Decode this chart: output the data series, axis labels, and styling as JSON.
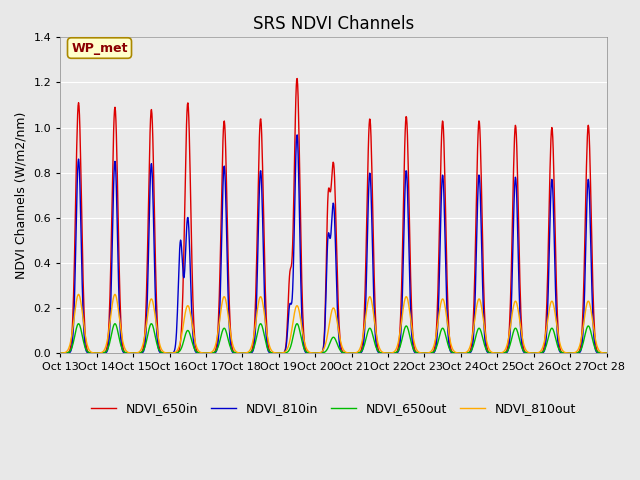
{
  "title": "SRS NDVI Channels",
  "ylabel": "NDVI Channels (W/m2/nm)",
  "ylim": [
    0,
    1.4
  ],
  "yticks": [
    0.0,
    0.2,
    0.4,
    0.6,
    0.8,
    1.0,
    1.2,
    1.4
  ],
  "annotation_text": "WP_met",
  "annotation_color": "#8B0000",
  "annotation_bg": "#FFFFCC",
  "fig_bg": "#E8E8E8",
  "ax_bg": "#EAEAEA",
  "series": {
    "NDVI_650in": {
      "color": "#DD0000",
      "lw": 1.0
    },
    "NDVI_810in": {
      "color": "#0000CC",
      "lw": 1.0
    },
    "NDVI_650out": {
      "color": "#00BB00",
      "lw": 1.0
    },
    "NDVI_810out": {
      "color": "#FFAA00",
      "lw": 1.0
    }
  },
  "xtick_labels": [
    "Oct 13",
    "Oct 14",
    "Oct 15",
    "Oct 16",
    "Oct 17",
    "Oct 18",
    "Oct 19",
    "Oct 20",
    "Oct 21",
    "Oct 22",
    "Oct 23",
    "Oct 24",
    "Oct 25",
    "Oct 26",
    "Oct 27",
    "Oct 28"
  ],
  "day_peaks": {
    "NDVI_650in": [
      1.11,
      1.09,
      1.08,
      1.11,
      1.03,
      1.04,
      1.22,
      0.84,
      1.04,
      1.05,
      1.03,
      1.03,
      1.01,
      1.0,
      1.01
    ],
    "NDVI_810in": [
      0.86,
      0.85,
      0.84,
      0.6,
      0.83,
      0.81,
      0.97,
      0.66,
      0.8,
      0.81,
      0.79,
      0.79,
      0.78,
      0.77,
      0.77
    ],
    "NDVI_650out": [
      0.13,
      0.13,
      0.13,
      0.1,
      0.11,
      0.13,
      0.13,
      0.07,
      0.11,
      0.12,
      0.11,
      0.11,
      0.11,
      0.11,
      0.12
    ],
    "NDVI_810out": [
      0.26,
      0.26,
      0.24,
      0.21,
      0.25,
      0.25,
      0.21,
      0.2,
      0.25,
      0.25,
      0.24,
      0.24,
      0.23,
      0.23,
      0.23
    ]
  },
  "n_days": 15,
  "points_per_day": 80
}
